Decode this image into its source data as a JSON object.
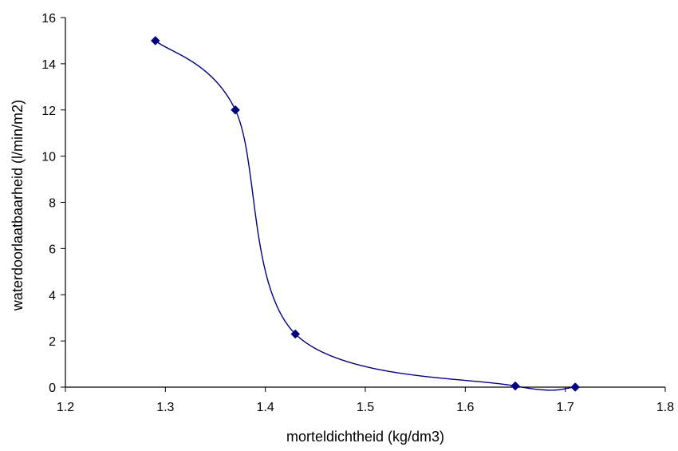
{
  "chart_data": {
    "type": "scatter",
    "title": "",
    "xlabel": "morteldichtheid (kg/dm3)",
    "ylabel": "waterdoorlaatbaarheid (l/min/m2)",
    "xlim": [
      1.2,
      1.8
    ],
    "ylim": [
      0,
      16
    ],
    "x_ticks": [
      "1.2",
      "1.3",
      "1.4",
      "1.5",
      "1.6",
      "1.7",
      "1.8"
    ],
    "y_ticks": [
      "0",
      "2",
      "4",
      "6",
      "8",
      "10",
      "12",
      "14",
      "16"
    ],
    "grid": false,
    "legend": "none",
    "line_style": "smoothed",
    "series": [
      {
        "x": [
          1.29,
          1.37,
          1.43,
          1.65,
          1.71
        ],
        "y": [
          15.0,
          12.0,
          2.3,
          0.05,
          0.0
        ],
        "color": "#000080",
        "marker": "diamond"
      }
    ]
  }
}
